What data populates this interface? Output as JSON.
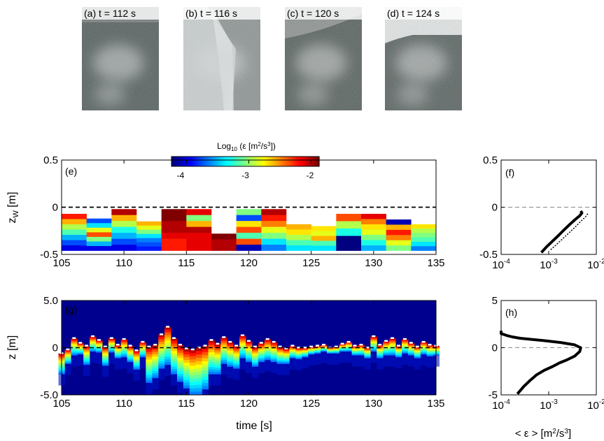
{
  "photos": [
    {
      "label": "(a) t = 112 s",
      "tone": "#55605f"
    },
    {
      "label": "(b) t = 116 s",
      "tone": "#8e9594"
    },
    {
      "label": "(c) t = 120 s",
      "tone": "#58625f"
    },
    {
      "label": "(d) t = 124 s",
      "tone": "#5a6462"
    }
  ],
  "colorbar": {
    "title_main": "Log",
    "title_sub": "10",
    "title_rest": " (ε [m",
    "title_exp": "2",
    "title_mid": "/s",
    "title_exp2": "3",
    "title_end": "])",
    "ticks": [
      "-4",
      "-3",
      "-2"
    ],
    "range": [
      -4,
      -2
    ]
  },
  "chart_data": [
    {
      "id": "e",
      "type": "heatmap",
      "panel_label": "(e)",
      "ylabel_main": "z",
      "ylabel_sub": "W",
      "ylabel_unit": " [m]",
      "xlim": [
        105,
        135
      ],
      "ylim": [
        -0.5,
        0.5
      ],
      "xticks": [
        "105",
        "110",
        "115",
        "120",
        "125",
        "130",
        "135"
      ],
      "yticks": [
        "0.5",
        "0",
        "-0.5"
      ],
      "reference_line": 0,
      "columns": [
        {
          "x0": 105,
          "x1": 107,
          "top": -0.07,
          "values": [
            -2.3,
            -2.6,
            -2.9,
            -3.1,
            -3.4,
            -3.6,
            -3.8
          ]
        },
        {
          "x0": 107,
          "x1": 109,
          "top": -0.12,
          "values": [
            -3.6,
            -3.3,
            -2.8,
            -2.4,
            -3.0,
            -3.4,
            -3.8
          ]
        },
        {
          "x0": 109,
          "x1": 111,
          "top": -0.02,
          "values": [
            -2.1,
            -2.6,
            -2.9,
            -3.2,
            -3.4,
            -3.6,
            -3.8
          ]
        },
        {
          "x0": 111,
          "x1": 113,
          "top": -0.15,
          "values": [
            -2.6,
            -2.8,
            -3.0,
            -3.3,
            -3.5,
            -3.6,
            -3.7
          ]
        },
        {
          "x0": 113,
          "x1": 115,
          "top": -0.02,
          "values": [
            -2.0,
            -2.0,
            -2.1,
            -2.1,
            -2.2,
            -2.3,
            -2.3
          ]
        },
        {
          "x0": 115,
          "x1": 117,
          "top": -0.02,
          "values": [
            -2.2,
            -3.0,
            -2.6,
            -2.1,
            -2.2,
            -2.2,
            -2.2
          ]
        },
        {
          "x0": 117,
          "x1": 119,
          "top": -0.28,
          "values": [
            -2.0,
            -2.1,
            -2.1
          ]
        },
        {
          "x0": 119,
          "x1": 121,
          "top": -0.02,
          "values": [
            -3.0,
            -3.6,
            -2.7,
            -2.4,
            -3.1,
            -2.4,
            -3.9
          ]
        },
        {
          "x0": 121,
          "x1": 123,
          "top": -0.02,
          "values": [
            -2.1,
            -2.3,
            -2.5,
            -2.8,
            -3.0,
            -3.3,
            -3.5
          ]
        },
        {
          "x0": 123,
          "x1": 125,
          "top": -0.18,
          "values": [
            -2.6,
            -2.7,
            -2.9,
            -3.1,
            -3.3
          ]
        },
        {
          "x0": 125,
          "x1": 127,
          "top": -0.2,
          "values": [
            -2.7,
            -2.8,
            -2.6,
            -3.1,
            -3.3
          ]
        },
        {
          "x0": 127,
          "x1": 129,
          "top": -0.07,
          "values": [
            -2.4,
            -2.9,
            -3.2,
            -4.0,
            -4.0
          ]
        },
        {
          "x0": 129,
          "x1": 131,
          "top": -0.07,
          "values": [
            -2.2,
            -2.5,
            -2.7,
            -2.8,
            -3.0,
            -3.2,
            -3.4
          ]
        },
        {
          "x0": 131,
          "x1": 133,
          "top": -0.13,
          "values": [
            -3.9,
            -2.6,
            -2.3,
            -2.5,
            -2.8,
            -3.0
          ]
        },
        {
          "x0": 133,
          "x1": 135,
          "top": -0.18,
          "values": [
            -2.7,
            -2.9,
            -3.0,
            -3.1,
            -3.3,
            -3.5
          ]
        }
      ]
    },
    {
      "id": "f",
      "type": "line",
      "panel_label": "(f)",
      "xscale": "log",
      "xlim": [
        0.0001,
        0.01
      ],
      "ylim": [
        -0.5,
        0.5
      ],
      "xticks": [
        {
          "base": "10",
          "exp": "-4"
        },
        {
          "base": "10",
          "exp": "-3"
        },
        {
          "base": "10",
          "exp": "-2"
        }
      ],
      "yticks": [
        "0.5",
        "0",
        "-0.5"
      ],
      "reference_line": 0,
      "series": [
        {
          "style": "solid",
          "x": [
            0.0007,
            0.0009,
            0.0012,
            0.0016,
            0.0021,
            0.0028,
            0.0036,
            0.0045,
            0.005,
            0.0047
          ],
          "y": [
            -0.48,
            -0.42,
            -0.36,
            -0.3,
            -0.24,
            -0.18,
            -0.13,
            -0.09,
            -0.06,
            -0.04
          ]
        },
        {
          "style": "dotted",
          "x": [
            0.0011,
            0.0015,
            0.002,
            0.0027,
            0.0036,
            0.0047,
            0.006,
            0.0068
          ],
          "y": [
            -0.45,
            -0.39,
            -0.33,
            -0.27,
            -0.21,
            -0.15,
            -0.1,
            -0.06
          ]
        }
      ]
    },
    {
      "id": "g",
      "type": "heatmap",
      "panel_label": "(g)",
      "xlabel": "time [s]",
      "ylabel": "z [m]",
      "xlim": [
        105,
        135
      ],
      "ylim": [
        -5.0,
        5.0
      ],
      "xticks": [
        "105",
        "110",
        "115",
        "120",
        "125",
        "130",
        "135"
      ],
      "yticks": [
        "5.0",
        "0",
        "-5.0"
      ],
      "reference_line": 0,
      "surface_t": [
        105.0,
        105.5,
        106.0,
        106.5,
        107.0,
        107.5,
        108.0,
        108.5,
        109.0,
        109.5,
        110.0,
        110.5,
        111.0,
        111.5,
        112.0,
        112.5,
        113.0,
        113.5,
        114.0,
        114.5,
        115.0,
        115.5,
        116.0,
        116.5,
        117.0,
        117.5,
        118.0,
        118.5,
        119.0,
        119.5,
        120.0,
        120.5,
        121.0,
        121.5,
        122.0,
        122.5,
        123.0,
        123.5,
        124.0,
        124.5,
        125.0,
        125.5,
        126.0,
        126.5,
        127.0,
        127.5,
        128.0,
        128.5,
        129.0,
        129.5,
        130.0,
        130.5,
        131.0,
        131.5,
        132.0,
        132.5,
        133.0,
        133.5,
        134.0,
        134.5,
        135.0
      ],
      "surface_z": [
        -0.6,
        -0.2,
        1.0,
        0.5,
        0.2,
        1.2,
        0.8,
        0.1,
        1.0,
        0.3,
        0.9,
        0.2,
        -0.3,
        0.6,
        0.1,
        0.3,
        1.4,
        2.2,
        1.0,
        0.3,
        -0.1,
        -0.2,
        0.0,
        0.2,
        0.8,
        0.4,
        1.1,
        0.6,
        0.2,
        1.3,
        0.7,
        0.1,
        0.5,
        0.9,
        0.6,
        0.1,
        -0.1,
        0.2,
        0.0,
        0.0,
        0.1,
        0.2,
        0.3,
        0.0,
        0.1,
        0.4,
        0.6,
        0.2,
        0.3,
        0.0,
        1.2,
        0.3,
        0.7,
        1.0,
        0.2,
        0.9,
        0.5,
        0.1,
        0.6,
        0.3,
        0.2
      ],
      "penetration_depth": [
        2.2,
        1.5,
        1.8,
        1.2,
        2.0,
        1.6,
        1.3,
        2.0,
        1.5,
        1.4,
        1.9,
        1.7,
        2.0,
        1.6,
        3.8,
        3.5,
        3.6,
        4.0,
        3.8,
        3.9,
        4.2,
        4.8,
        5.0,
        4.6,
        3.6,
        3.2,
        2.8,
        2.6,
        2.4,
        2.4,
        2.2,
        2.1,
        2.0,
        2.2,
        2.1,
        1.8,
        1.6,
        1.3,
        1.2,
        1.0,
        0.8,
        0.8,
        0.7,
        0.6,
        0.7,
        0.8,
        1.0,
        1.0,
        1.1,
        1.1,
        1.6,
        1.4,
        1.5,
        1.8,
        1.2,
        1.5,
        1.3,
        1.2,
        1.3,
        1.2,
        1.0
      ]
    },
    {
      "id": "h",
      "type": "line",
      "panel_label": "(h)",
      "xlabel_main": "< ε > [m",
      "xlabel_exp": "2",
      "xlabel_mid": "/s",
      "xlabel_exp2": "3",
      "xlabel_end": "]",
      "xscale": "log",
      "xlim": [
        0.0001,
        0.01
      ],
      "ylim": [
        -5,
        5
      ],
      "xticks": [
        {
          "base": "10",
          "exp": "-4"
        },
        {
          "base": "10",
          "exp": "-3"
        },
        {
          "base": "10",
          "exp": "-2"
        }
      ],
      "yticks": [
        "5",
        "0",
        "-5"
      ],
      "reference_line": 0,
      "series": [
        {
          "style": "solid",
          "x": [
            0.0001,
            0.0001,
            0.00013,
            0.00017,
            0.00025,
            0.0004,
            0.0008,
            0.0018,
            0.0035,
            0.0047,
            0.0045,
            0.0035,
            0.0024,
            0.0017,
            0.0012,
            0.0008,
            0.00055,
            0.0004,
            0.0003,
            0.00022
          ],
          "y": [
            1.8,
            1.5,
            1.3,
            1.15,
            1.0,
            0.9,
            0.75,
            0.55,
            0.3,
            0.0,
            -0.4,
            -0.9,
            -1.3,
            -1.6,
            -2.0,
            -2.4,
            -2.9,
            -3.5,
            -4.1,
            -4.9
          ]
        }
      ]
    }
  ]
}
